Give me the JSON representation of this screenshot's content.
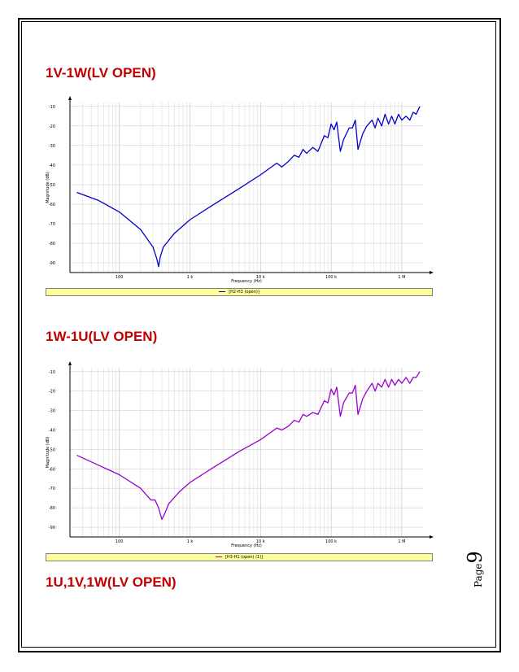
{
  "headings": {
    "chart1": "1V-1W(LV OPEN)",
    "chart2": "1W-1U(LV OPEN)",
    "chart3": "1U,1V,1W(LV OPEN)"
  },
  "page": {
    "label": "Page",
    "number": "9"
  },
  "colors": {
    "heading": "#c00000",
    "series1": "#0000cc",
    "series2": "#9900cc",
    "legend_bg": "#ffff99"
  },
  "chart_data": [
    {
      "type": "line",
      "xscale": "log",
      "xlim": [
        20,
        2000000
      ],
      "ylim": [
        -95,
        -8
      ],
      "xlabel": "Frequency (Hz)",
      "ylabel": "Magnitude (dB)",
      "xticks": [
        {
          "v": 100,
          "label": "100"
        },
        {
          "v": 1000,
          "label": "1 k"
        },
        {
          "v": 10000,
          "label": "10 k"
        },
        {
          "v": 100000,
          "label": "100 k"
        },
        {
          "v": 1000000,
          "label": "1 M"
        }
      ],
      "yticks": [
        -10,
        -20,
        -30,
        -40,
        -50,
        -60,
        -70,
        -80,
        -90
      ],
      "grid": true,
      "legend": "[H2-H3 (open)]",
      "series": [
        {
          "color": "#0000cc",
          "points": [
            [
              25,
              -54
            ],
            [
              50,
              -58
            ],
            [
              100,
              -64
            ],
            [
              200,
              -73
            ],
            [
              300,
              -82
            ],
            [
              340,
              -88
            ],
            [
              360,
              -92
            ],
            [
              380,
              -87
            ],
            [
              420,
              -82
            ],
            [
              600,
              -75
            ],
            [
              1000,
              -68
            ],
            [
              2000,
              -61
            ],
            [
              5000,
              -52
            ],
            [
              10000,
              -45
            ],
            [
              17000,
              -39
            ],
            [
              20000,
              -41
            ],
            [
              25000,
              -38
            ],
            [
              30000,
              -35
            ],
            [
              35000,
              -36
            ],
            [
              40000,
              -32
            ],
            [
              45000,
              -34
            ],
            [
              55000,
              -31
            ],
            [
              65000,
              -33
            ],
            [
              80000,
              -25
            ],
            [
              90000,
              -26
            ],
            [
              100000,
              -19
            ],
            [
              110000,
              -22
            ],
            [
              120000,
              -18
            ],
            [
              135000,
              -33
            ],
            [
              150000,
              -27
            ],
            [
              180000,
              -21
            ],
            [
              200000,
              -21
            ],
            [
              220000,
              -17
            ],
            [
              240000,
              -32
            ],
            [
              280000,
              -24
            ],
            [
              320000,
              -20
            ],
            [
              380000,
              -17
            ],
            [
              420000,
              -21
            ],
            [
              460000,
              -16
            ],
            [
              520000,
              -20
            ],
            [
              580000,
              -14
            ],
            [
              650000,
              -19
            ],
            [
              720000,
              -15
            ],
            [
              800000,
              -19
            ],
            [
              900000,
              -14
            ],
            [
              1000000,
              -17
            ],
            [
              1150000,
              -15
            ],
            [
              1300000,
              -17
            ],
            [
              1450000,
              -13
            ],
            [
              1600000,
              -14
            ],
            [
              1800000,
              -10
            ]
          ]
        }
      ]
    },
    {
      "type": "line",
      "xscale": "log",
      "xlim": [
        20,
        2000000
      ],
      "ylim": [
        -95,
        -8
      ],
      "xlabel": "Frequency (Hz)",
      "ylabel": "Magnitude (dB)",
      "xticks": [
        {
          "v": 100,
          "label": "100"
        },
        {
          "v": 1000,
          "label": "1 k"
        },
        {
          "v": 10000,
          "label": "10 k"
        },
        {
          "v": 100000,
          "label": "100 k"
        },
        {
          "v": 1000000,
          "label": "1 M"
        }
      ],
      "yticks": [
        -10,
        -20,
        -30,
        -40,
        -50,
        -60,
        -70,
        -80,
        -90
      ],
      "grid": true,
      "legend": "[H3-H1 (open) (1)]",
      "series": [
        {
          "color": "#9900cc",
          "points": [
            [
              25,
              -53
            ],
            [
              50,
              -58
            ],
            [
              100,
              -63
            ],
            [
              200,
              -70
            ],
            [
              280,
              -76
            ],
            [
              320,
              -76
            ],
            [
              360,
              -80
            ],
            [
              400,
              -86
            ],
            [
              440,
              -83
            ],
            [
              500,
              -78
            ],
            [
              700,
              -72
            ],
            [
              1000,
              -67
            ],
            [
              2000,
              -60
            ],
            [
              5000,
              -51
            ],
            [
              10000,
              -45
            ],
            [
              17000,
              -39
            ],
            [
              20000,
              -40
            ],
            [
              25000,
              -38
            ],
            [
              30000,
              -35
            ],
            [
              35000,
              -36
            ],
            [
              40000,
              -32
            ],
            [
              45000,
              -33
            ],
            [
              55000,
              -31
            ],
            [
              65000,
              -32
            ],
            [
              80000,
              -25
            ],
            [
              90000,
              -26
            ],
            [
              100000,
              -19
            ],
            [
              110000,
              -22
            ],
            [
              120000,
              -18
            ],
            [
              135000,
              -33
            ],
            [
              150000,
              -26
            ],
            [
              180000,
              -21
            ],
            [
              200000,
              -21
            ],
            [
              220000,
              -17
            ],
            [
              240000,
              -32
            ],
            [
              280000,
              -24
            ],
            [
              320000,
              -20
            ],
            [
              380000,
              -16
            ],
            [
              420000,
              -20
            ],
            [
              460000,
              -16
            ],
            [
              520000,
              -18
            ],
            [
              580000,
              -14
            ],
            [
              650000,
              -18
            ],
            [
              720000,
              -14
            ],
            [
              800000,
              -17
            ],
            [
              900000,
              -14
            ],
            [
              1000000,
              -16
            ],
            [
              1150000,
              -13
            ],
            [
              1300000,
              -16
            ],
            [
              1450000,
              -13
            ],
            [
              1600000,
              -13
            ],
            [
              1800000,
              -10
            ]
          ]
        }
      ]
    }
  ]
}
